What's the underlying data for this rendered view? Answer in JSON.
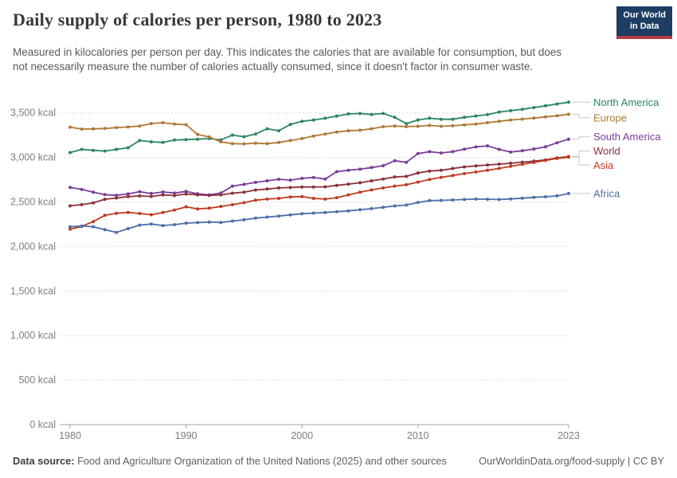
{
  "header": {
    "title": "Daily supply of calories per person, 1980 to 2023",
    "subtitle": "Measured in kilocalories per person per day. This indicates the calories that are available for consumption, but does not necessarily measure the number of calories actually consumed, since it doesn't factor in consumer waste.",
    "logo": {
      "line1": "Our World",
      "line2": "in Data"
    }
  },
  "footer": {
    "source_label": "Data source:",
    "source_text": " Food and Agriculture Organization of the United Nations (2025) and other sources",
    "credit_text": "OurWorldinData.org/food-supply | CC BY"
  },
  "chart_data": {
    "type": "line",
    "title": "Daily supply of calories per person, 1980 to 2023",
    "xlabel": "",
    "ylabel": "",
    "unit": "kcal",
    "xlim": [
      1980,
      2023
    ],
    "ylim": [
      0,
      3500
    ],
    "x_ticks": [
      1980,
      1990,
      2000,
      2010,
      2023
    ],
    "y_ticks": [
      0,
      500,
      1000,
      1500,
      2000,
      2500,
      3000,
      3500
    ],
    "y_tick_labels": [
      "0 kcal",
      "500 kcal",
      "1,000 kcal",
      "1,500 kcal",
      "2,000 kcal",
      "2,500 kcal",
      "3,000 kcal",
      "3,500 kcal"
    ],
    "grid": true,
    "legend_position": "right",
    "years": [
      1980,
      1981,
      1982,
      1983,
      1984,
      1985,
      1986,
      1987,
      1988,
      1989,
      1990,
      1991,
      1992,
      1993,
      1994,
      1995,
      1996,
      1997,
      1998,
      1999,
      2000,
      2001,
      2002,
      2003,
      2004,
      2005,
      2006,
      2007,
      2008,
      2009,
      2010,
      2011,
      2012,
      2013,
      2014,
      2015,
      2016,
      2017,
      2018,
      2019,
      2020,
      2021,
      2022,
      2023
    ],
    "series": [
      {
        "name": "North America",
        "color": "#2C8465",
        "values": [
          3055,
          3090,
          3080,
          3072,
          3090,
          3108,
          3190,
          3175,
          3168,
          3195,
          3200,
          3205,
          3212,
          3197,
          3250,
          3233,
          3263,
          3322,
          3300,
          3370,
          3405,
          3420,
          3440,
          3464,
          3488,
          3494,
          3482,
          3494,
          3450,
          3380,
          3420,
          3440,
          3428,
          3428,
          3450,
          3465,
          3480,
          3510,
          3525,
          3540,
          3560,
          3580,
          3600,
          3620
        ]
      },
      {
        "name": "Europe",
        "color": "#AE7936",
        "values": [
          3340,
          3318,
          3320,
          3325,
          3335,
          3342,
          3352,
          3380,
          3390,
          3375,
          3368,
          3258,
          3230,
          3175,
          3155,
          3152,
          3160,
          3155,
          3168,
          3190,
          3212,
          3240,
          3262,
          3285,
          3300,
          3305,
          3322,
          3345,
          3352,
          3346,
          3350,
          3360,
          3350,
          3355,
          3365,
          3375,
          3390,
          3405,
          3420,
          3430,
          3442,
          3455,
          3468,
          3485
        ]
      },
      {
        "name": "South America",
        "color": "#7A3D98",
        "values": [
          2663,
          2640,
          2610,
          2582,
          2574,
          2590,
          2615,
          2595,
          2612,
          2600,
          2618,
          2592,
          2580,
          2600,
          2678,
          2698,
          2720,
          2737,
          2755,
          2745,
          2765,
          2775,
          2758,
          2840,
          2856,
          2868,
          2886,
          2907,
          2962,
          2945,
          3043,
          3064,
          3050,
          3064,
          3093,
          3118,
          3130,
          3090,
          3060,
          3075,
          3095,
          3120,
          3165,
          3205
        ]
      },
      {
        "name": "World",
        "color": "#8B3039",
        "values": [
          2456,
          2470,
          2490,
          2530,
          2545,
          2560,
          2568,
          2562,
          2580,
          2572,
          2589,
          2580,
          2574,
          2580,
          2598,
          2610,
          2634,
          2645,
          2657,
          2662,
          2668,
          2668,
          2670,
          2686,
          2700,
          2716,
          2737,
          2758,
          2781,
          2787,
          2826,
          2847,
          2855,
          2876,
          2894,
          2905,
          2915,
          2925,
          2935,
          2946,
          2958,
          2972,
          2994,
          3010
        ]
      },
      {
        "name": "Asia",
        "color": "#BF3B21",
        "values": [
          2195,
          2225,
          2280,
          2350,
          2373,
          2383,
          2370,
          2357,
          2382,
          2410,
          2445,
          2422,
          2430,
          2450,
          2470,
          2492,
          2520,
          2532,
          2540,
          2556,
          2560,
          2540,
          2532,
          2548,
          2580,
          2610,
          2635,
          2657,
          2678,
          2693,
          2723,
          2752,
          2776,
          2797,
          2818,
          2836,
          2855,
          2877,
          2900,
          2922,
          2944,
          2966,
          2988,
          3003
        ]
      },
      {
        "name": "Africa",
        "color": "#4D6FA8",
        "values": [
          2222,
          2230,
          2222,
          2190,
          2158,
          2200,
          2240,
          2252,
          2235,
          2245,
          2262,
          2268,
          2275,
          2270,
          2285,
          2300,
          2318,
          2330,
          2342,
          2355,
          2368,
          2375,
          2382,
          2390,
          2400,
          2412,
          2425,
          2440,
          2455,
          2465,
          2495,
          2515,
          2518,
          2522,
          2528,
          2532,
          2530,
          2528,
          2534,
          2542,
          2552,
          2558,
          2568,
          2595
        ]
      }
    ]
  }
}
